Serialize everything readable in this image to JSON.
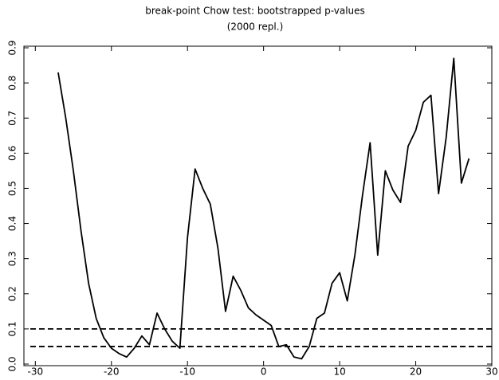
{
  "chart_data": {
    "type": "line",
    "title": "break-point Chow test: bootstrapped p-values",
    "subtitle": "(2000 repl.)",
    "x": [
      -27,
      -26,
      -25,
      -24,
      -23,
      -22,
      -21,
      -20,
      -19,
      -18,
      -17,
      -16,
      -15,
      -14,
      -13,
      -12,
      -11,
      -10,
      -9,
      -8,
      -7,
      -6,
      -5,
      -4,
      -3,
      -2,
      -1,
      0,
      1,
      2,
      3,
      4,
      5,
      6,
      7,
      8,
      9,
      10,
      11,
      12,
      13,
      14,
      15,
      16,
      17,
      18,
      19,
      20,
      21,
      22,
      23,
      24,
      25,
      26,
      27
    ],
    "series": [
      {
        "name": "p-value",
        "color": "#000000",
        "values": [
          0.83,
          0.7,
          0.55,
          0.38,
          0.23,
          0.13,
          0.075,
          0.045,
          0.03,
          0.02,
          0.045,
          0.08,
          0.055,
          0.145,
          0.1,
          0.065,
          0.045,
          0.36,
          0.555,
          0.5,
          0.455,
          0.33,
          0.15,
          0.25,
          0.21,
          0.16,
          0.14,
          0.125,
          0.11,
          0.05,
          0.055,
          0.02,
          0.015,
          0.05,
          0.13,
          0.145,
          0.23,
          0.26,
          0.18,
          0.31,
          0.48,
          0.63,
          0.31,
          0.55,
          0.495,
          0.46,
          0.62,
          0.665,
          0.745,
          0.765,
          0.485,
          0.645,
          0.87,
          0.515,
          0.585
        ]
      }
    ],
    "hlines": [
      0.1,
      0.05
    ],
    "xlim": [
      -31.5,
      30
    ],
    "ylim": [
      0,
      0.9
    ],
    "xticks": [
      -30,
      -20,
      -10,
      0,
      10,
      20,
      30
    ],
    "yticks": [
      {
        "value": 0,
        "label": "0.0"
      },
      0.1,
      0.2,
      0.3,
      0.4,
      0.5,
      0.6,
      0.7,
      0.8,
      0.9
    ]
  }
}
